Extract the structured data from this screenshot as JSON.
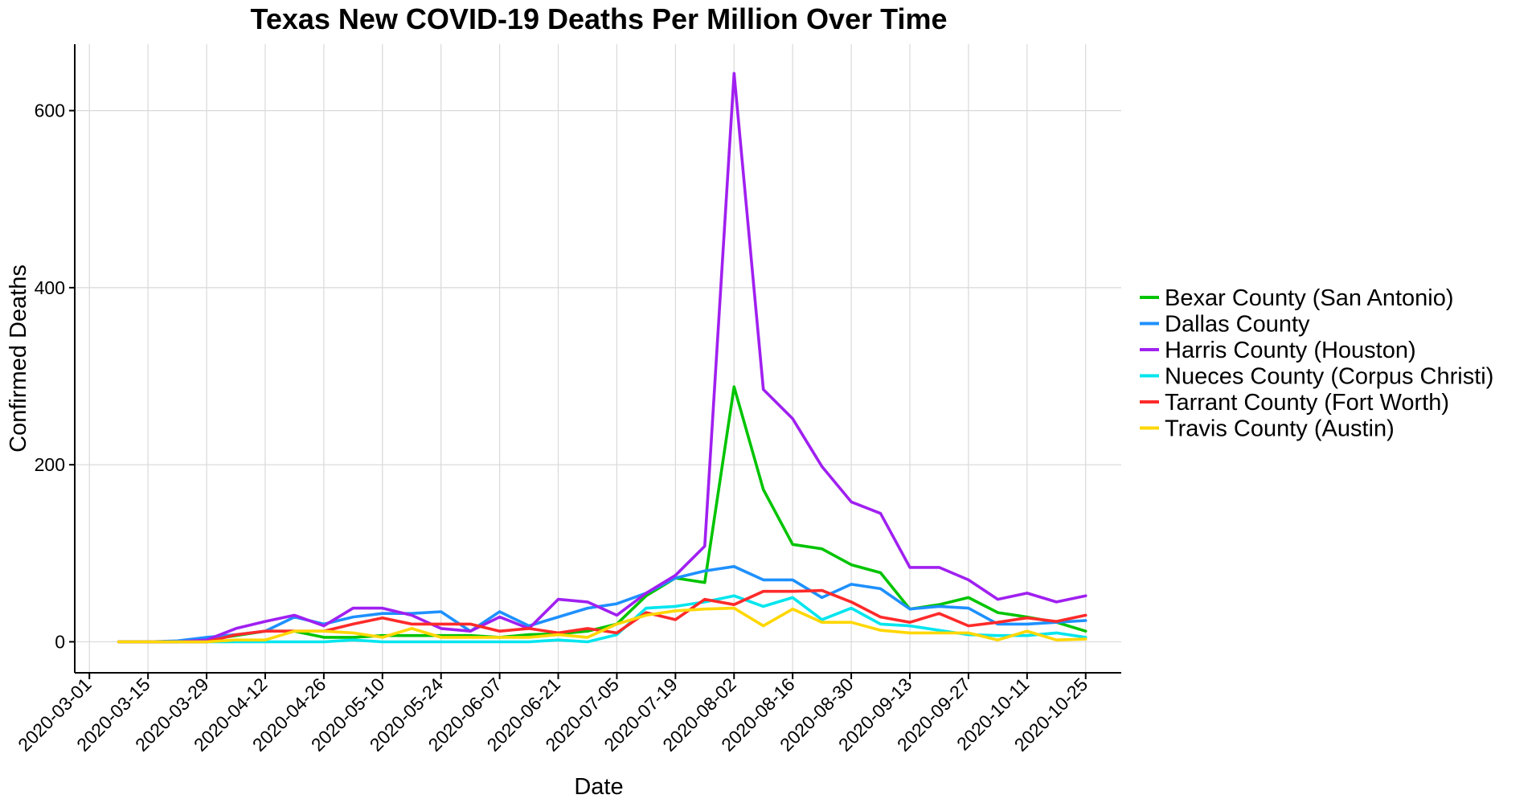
{
  "chart_data": {
    "type": "line",
    "title": "Texas New COVID-19 Deaths Per Million Over Time",
    "xlabel": "Date",
    "ylabel": "Confirmed Deaths",
    "grid": true,
    "legend_position": "right",
    "ylim": [
      -35,
      675
    ],
    "y_ticks": [
      0,
      200,
      400,
      600
    ],
    "x_tick_labels": [
      "2020-03-01",
      "2020-03-15",
      "2020-03-29",
      "2020-04-12",
      "2020-04-26",
      "2020-05-10",
      "2020-05-24",
      "2020-06-07",
      "2020-06-21",
      "2020-07-05",
      "2020-07-19",
      "2020-08-02",
      "2020-08-16",
      "2020-08-30",
      "2020-09-13",
      "2020-09-27",
      "2020-10-11",
      "2020-10-25"
    ],
    "x": [
      "2020-03-08",
      "2020-03-15",
      "2020-03-22",
      "2020-03-29",
      "2020-04-05",
      "2020-04-12",
      "2020-04-19",
      "2020-04-26",
      "2020-05-03",
      "2020-05-10",
      "2020-05-17",
      "2020-05-24",
      "2020-05-31",
      "2020-06-07",
      "2020-06-14",
      "2020-06-21",
      "2020-06-28",
      "2020-07-05",
      "2020-07-12",
      "2020-07-19",
      "2020-07-26",
      "2020-08-02",
      "2020-08-09",
      "2020-08-16",
      "2020-08-23",
      "2020-08-30",
      "2020-09-06",
      "2020-09-13",
      "2020-09-20",
      "2020-09-27",
      "2020-10-04",
      "2020-10-11",
      "2020-10-18",
      "2020-10-25"
    ],
    "series": [
      {
        "name": "Bexar County (San Antonio)",
        "color": "#00c400",
        "values": [
          0,
          0,
          0,
          2,
          7,
          12,
          12,
          5,
          5,
          7,
          7,
          7,
          7,
          5,
          8,
          9,
          12,
          20,
          52,
          72,
          67,
          288,
          172,
          110,
          105,
          87,
          78,
          37,
          42,
          50,
          33,
          28,
          22,
          12
        ]
      },
      {
        "name": "Dallas County",
        "color": "#1e90ff",
        "values": [
          0,
          0,
          1,
          5,
          8,
          12,
          28,
          20,
          28,
          32,
          32,
          34,
          12,
          34,
          18,
          28,
          38,
          43,
          55,
          72,
          80,
          85,
          70,
          70,
          50,
          65,
          60,
          37,
          40,
          38,
          20,
          20,
          22,
          24
        ]
      },
      {
        "name": "Harris County (Houston)",
        "color": "#a020f0",
        "values": [
          0,
          0,
          0,
          2,
          15,
          23,
          30,
          18,
          38,
          38,
          30,
          15,
          12,
          28,
          15,
          48,
          45,
          30,
          55,
          75,
          108,
          642,
          285,
          252,
          198,
          158,
          145,
          84,
          84,
          70,
          48,
          55,
          45,
          52
        ]
      },
      {
        "name": "Nueces County (Corpus Christi)",
        "color": "#00e5ee",
        "values": [
          0,
          0,
          0,
          0,
          0,
          0,
          0,
          0,
          2,
          0,
          0,
          0,
          0,
          0,
          0,
          2,
          0,
          8,
          38,
          40,
          45,
          52,
          40,
          50,
          25,
          38,
          20,
          18,
          13,
          8,
          7,
          7,
          10,
          5
        ]
      },
      {
        "name": "Tarrant County (Fort Worth)",
        "color": "#ff2a2a",
        "values": [
          0,
          0,
          0,
          0,
          8,
          12,
          12,
          12,
          20,
          27,
          20,
          20,
          20,
          12,
          15,
          10,
          15,
          10,
          33,
          25,
          48,
          42,
          57,
          57,
          58,
          45,
          28,
          22,
          32,
          18,
          22,
          27,
          23,
          30
        ]
      },
      {
        "name": "Travis County (Austin)",
        "color": "#ffd700",
        "values": [
          0,
          0,
          0,
          0,
          2,
          2,
          12,
          12,
          10,
          5,
          15,
          5,
          5,
          5,
          5,
          8,
          5,
          20,
          30,
          35,
          37,
          38,
          18,
          37,
          22,
          22,
          13,
          10,
          10,
          10,
          2,
          12,
          2,
          3
        ]
      }
    ]
  }
}
